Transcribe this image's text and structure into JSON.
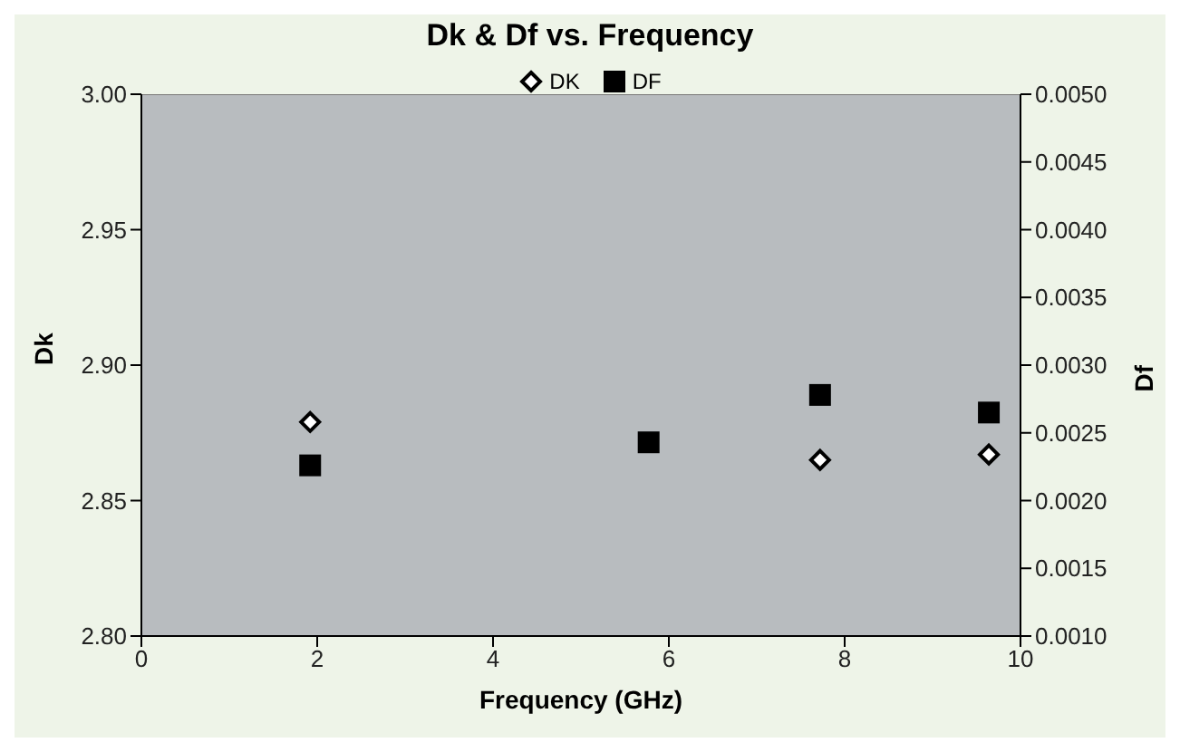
{
  "chart_data": {
    "type": "scatter",
    "title": "Dk & Df vs. Frequency",
    "xlabel": "Frequency (GHz)",
    "ylabel": "Dk",
    "y2label": "Df",
    "xlim": [
      0,
      10
    ],
    "xticks": [
      0,
      2,
      4,
      6,
      8,
      10
    ],
    "ylim": [
      2.8,
      3.0
    ],
    "yticks": [
      {
        "value": 2.8,
        "label": "2.80"
      },
      {
        "value": 2.85,
        "label": "2.85"
      },
      {
        "value": 2.9,
        "label": "2.90"
      },
      {
        "value": 2.95,
        "label": "2.95"
      },
      {
        "value": 3.0,
        "label": "3.00"
      }
    ],
    "y2lim": [
      0.001,
      0.005
    ],
    "y2ticks": [
      {
        "value": 0.001,
        "label": "0.0010"
      },
      {
        "value": 0.0015,
        "label": "0.0015"
      },
      {
        "value": 0.002,
        "label": "0.0020"
      },
      {
        "value": 0.0025,
        "label": "0.0025"
      },
      {
        "value": 0.003,
        "label": "0.0030"
      },
      {
        "value": 0.0035,
        "label": "0.0035"
      },
      {
        "value": 0.004,
        "label": "0.0040"
      },
      {
        "value": 0.0045,
        "label": "0.0045"
      },
      {
        "value": 0.005,
        "label": "0.0050"
      }
    ],
    "x": [
      1.92,
      5.77,
      7.72,
      9.64
    ],
    "grid": false,
    "legend": "top",
    "series": [
      {
        "name": "DK",
        "color": "#ffffff",
        "marker": "diamond",
        "values": [
          2.879,
          null,
          2.865,
          2.867
        ]
      },
      {
        "name": "DF",
        "color": "#000000",
        "marker": "square",
        "axis": "y2",
        "values": [
          0.00226,
          0.00243,
          0.00278,
          0.00265
        ]
      }
    ]
  }
}
